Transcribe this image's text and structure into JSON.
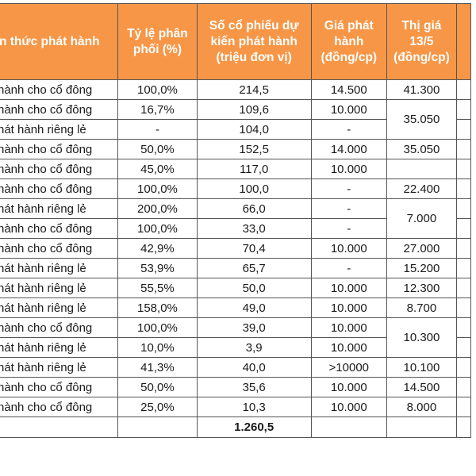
{
  "headers": {
    "method": "n thức phát hành",
    "ratio": [
      "Tỷ lệ phân",
      "phối (%)"
    ],
    "shares": [
      "Số cổ phiếu dự",
      "kiến phát hành",
      "(triệu đơn vị)"
    ],
    "price": [
      "Giá phát",
      "hành",
      "(đồng/cp)"
    ],
    "market": [
      "Thị giá",
      "13/5",
      "(đồng/cp)"
    ]
  },
  "rows": [
    {
      "method": " hành cho cổ đông",
      "ratio": "100,0%",
      "shares": "214,5",
      "price": "14.500",
      "market": "41.300"
    },
    {
      "method": " hành cho cổ đông",
      "ratio": "16,7%",
      "shares": "109,6",
      "price": "10.000",
      "market": "35.050"
    },
    {
      "method": "hát hành riêng lẻ",
      "ratio": "-",
      "shares": "104,0",
      "price": "-",
      "market": null
    },
    {
      "method": " hành cho cổ đông",
      "ratio": "50,0%",
      "shares": "152,5",
      "price": "14.000",
      "market": "35.050"
    },
    {
      "method": " hành cho cổ đông",
      "ratio": "45,0%",
      "shares": "117,0",
      "price": "10.000",
      "market": ""
    },
    {
      "method": " hành cho cổ đông",
      "ratio": "100,0%",
      "shares": "100,0",
      "price": "-",
      "market": "22.400"
    },
    {
      "method": "hát hành riêng lẻ",
      "ratio": "200,0%",
      "shares": "66,0",
      "price": "-",
      "market": "7.000"
    },
    {
      "method": " hành cho cổ đông",
      "ratio": "100,0%",
      "shares": "33,0",
      "price": "-",
      "market": null
    },
    {
      "method": " hành cho cổ đông",
      "ratio": "42,9%",
      "shares": "70,4",
      "price": "10.000",
      "market": "27.000"
    },
    {
      "method": "hát hành riêng lẻ",
      "ratio": "53,9%",
      "shares": "65,7",
      "price": "-",
      "market": "15.200"
    },
    {
      "method": "hát hành riêng lẻ",
      "ratio": "55,5%",
      "shares": "50,0",
      "price": "10.000",
      "market": "12.300"
    },
    {
      "method": "hát hành riêng lẻ",
      "ratio": "158,0%",
      "shares": "49,0",
      "price": "10.000",
      "market": "8.700"
    },
    {
      "method": " hành cho cổ đông",
      "ratio": "100,0%",
      "shares": "39,0",
      "price": "10.000",
      "market": "10.300"
    },
    {
      "method": "hát hành riêng lẻ",
      "ratio": "10,0%",
      "shares": "3,9",
      "price": "10.000",
      "market": null
    },
    {
      "method": "hát hành riêng lẻ",
      "ratio": "41,3%",
      "shares": "40,0",
      "price": ">10000",
      "market": "10.100"
    },
    {
      "method": " hành cho cổ đông",
      "ratio": "50,0%",
      "shares": "35,6",
      "price": "10.000",
      "market": "14.500"
    },
    {
      "method": " hành cho cổ đông",
      "ratio": "25,0%",
      "shares": "10,3",
      "price": "10.000",
      "market": "8.000"
    }
  ],
  "total": {
    "shares": "1.260,5"
  }
}
